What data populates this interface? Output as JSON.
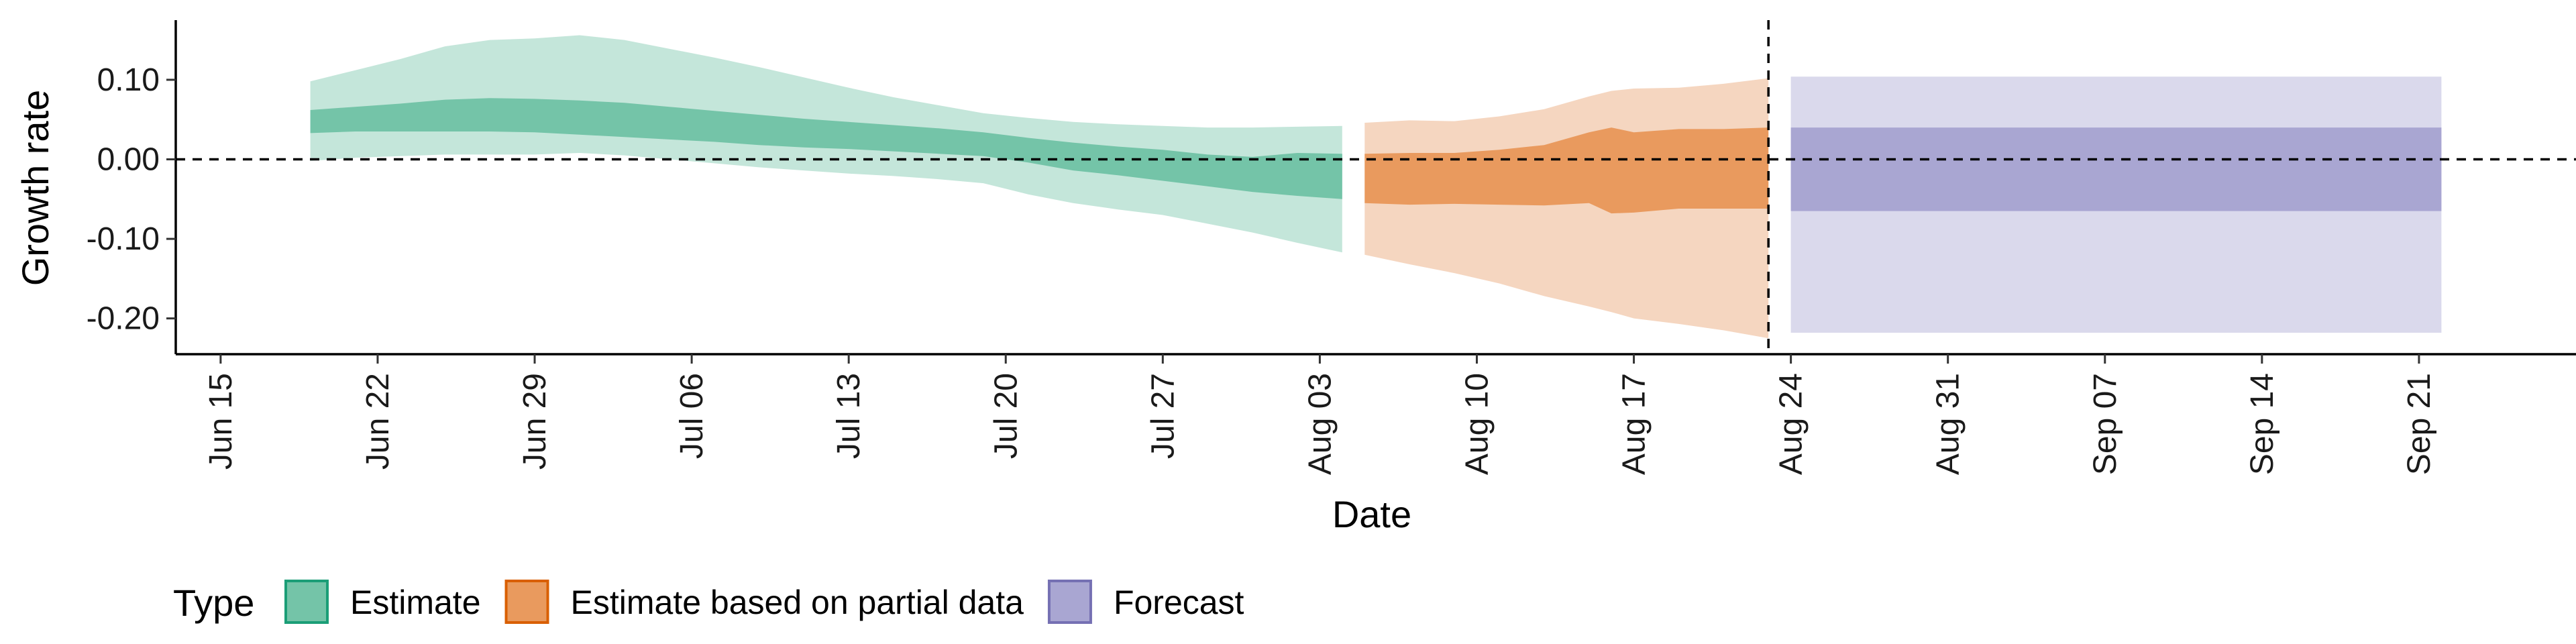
{
  "chart_data": {
    "type": "area",
    "xlabel": "Date",
    "ylabel": "Growth rate",
    "ylim": [
      -0.245,
      0.175
    ],
    "xlim": [
      "2020-06-13",
      "2020-09-28"
    ],
    "y_ticks": [
      0.1,
      0.0,
      -0.1,
      -0.2
    ],
    "y_tick_labels": [
      "0.10",
      "0.00",
      "-0.10",
      "-0.20"
    ],
    "x_ticks": [
      "2020-06-15",
      "2020-06-22",
      "2020-06-29",
      "2020-07-06",
      "2020-07-13",
      "2020-07-20",
      "2020-07-27",
      "2020-08-03",
      "2020-08-10",
      "2020-08-17",
      "2020-08-24",
      "2020-08-31",
      "2020-09-07",
      "2020-09-14",
      "2020-09-21"
    ],
    "x_tick_labels": [
      "Jun 15",
      "Jun 22",
      "Jun 29",
      "Jul 06",
      "Jul 13",
      "Jul 20",
      "Jul 27",
      "Aug 03",
      "Aug 10",
      "Aug 17",
      "Aug 24",
      "Aug 31",
      "Sep 07",
      "Sep 14",
      "Sep 21"
    ],
    "reference_lines": {
      "horizontal_y": 0.0,
      "vertical_x": "2020-08-23"
    },
    "grid": false,
    "legend": {
      "title": "Type",
      "position": "bottom-left",
      "entries": [
        {
          "label": "Estimate",
          "fill": "#74c4a8",
          "stroke": "#1b9e77"
        },
        {
          "label": "Estimate based on partial data",
          "fill": "#e99a5e",
          "stroke": "#d95f02"
        },
        {
          "label": "Forecast",
          "fill": "#a9a6d2",
          "stroke": "#7570b3"
        }
      ]
    },
    "series": [
      {
        "name": "Estimate",
        "outer_fill": "#c4e6da",
        "inner_fill": "#74c4a8",
        "x": [
          "2020-06-19",
          "2020-06-21",
          "2020-06-23",
          "2020-06-25",
          "2020-06-27",
          "2020-06-29",
          "2020-07-01",
          "2020-07-03",
          "2020-07-05",
          "2020-07-07",
          "2020-07-09",
          "2020-07-11",
          "2020-07-13",
          "2020-07-15",
          "2020-07-17",
          "2020-07-19",
          "2020-07-21",
          "2020-07-23",
          "2020-07-25",
          "2020-07-27",
          "2020-07-29",
          "2020-07-31",
          "2020-08-02",
          "2020-08-04"
        ],
        "outer_upper": [
          0.098,
          0.112,
          0.126,
          0.142,
          0.15,
          0.152,
          0.156,
          0.15,
          0.139,
          0.128,
          0.116,
          0.103,
          0.09,
          0.078,
          0.068,
          0.058,
          0.052,
          0.047,
          0.044,
          0.042,
          0.04,
          0.04,
          0.041,
          0.042
        ],
        "inner_upper": [
          0.062,
          0.066,
          0.07,
          0.075,
          0.077,
          0.076,
          0.074,
          0.071,
          0.066,
          0.061,
          0.056,
          0.051,
          0.047,
          0.043,
          0.039,
          0.034,
          0.027,
          0.021,
          0.016,
          0.012,
          0.006,
          0.003,
          0.008,
          0.007
        ],
        "inner_lower": [
          0.033,
          0.035,
          0.035,
          0.035,
          0.035,
          0.034,
          0.031,
          0.028,
          0.025,
          0.022,
          0.018,
          0.015,
          0.013,
          0.01,
          0.007,
          0.004,
          -0.004,
          -0.014,
          -0.02,
          -0.027,
          -0.034,
          -0.041,
          -0.046,
          -0.05
        ],
        "outer_lower": [
          -0.002,
          0.002,
          0.004,
          0.006,
          0.006,
          0.006,
          0.008,
          0.005,
          0.0,
          -0.005,
          -0.01,
          -0.014,
          -0.018,
          -0.021,
          -0.025,
          -0.03,
          -0.044,
          -0.055,
          -0.063,
          -0.07,
          -0.081,
          -0.092,
          -0.105,
          -0.117
        ]
      },
      {
        "name": "Estimate based on partial data",
        "outer_fill": "#f5d6c0",
        "inner_fill": "#e99a5e",
        "x": [
          "2020-08-05",
          "2020-08-07",
          "2020-08-09",
          "2020-08-11",
          "2020-08-13",
          "2020-08-15",
          "2020-08-16",
          "2020-08-17",
          "2020-08-19",
          "2020-08-21",
          "2020-08-23"
        ],
        "outer_upper": [
          0.046,
          0.049,
          0.048,
          0.054,
          0.063,
          0.079,
          0.086,
          0.089,
          0.09,
          0.095,
          0.102
        ],
        "inner_upper": [
          0.007,
          0.008,
          0.008,
          0.012,
          0.018,
          0.034,
          0.04,
          0.034,
          0.038,
          0.038,
          0.04
        ],
        "inner_lower": [
          -0.055,
          -0.057,
          -0.056,
          -0.057,
          -0.058,
          -0.055,
          -0.068,
          -0.067,
          -0.062,
          -0.062,
          -0.062
        ],
        "outer_lower": [
          -0.12,
          -0.132,
          -0.143,
          -0.156,
          -0.172,
          -0.185,
          -0.192,
          -0.2,
          -0.207,
          -0.215,
          -0.225
        ]
      },
      {
        "name": "Forecast",
        "outer_fill": "#dad9ec",
        "inner_fill": "#a9a6d2",
        "x": [
          "2020-08-24",
          "2020-09-22"
        ],
        "outer_upper": [
          0.104,
          0.104
        ],
        "inner_upper": [
          0.04,
          0.04
        ],
        "inner_lower": [
          -0.065,
          -0.065
        ],
        "outer_lower": [
          -0.218,
          -0.218
        ]
      }
    ]
  }
}
